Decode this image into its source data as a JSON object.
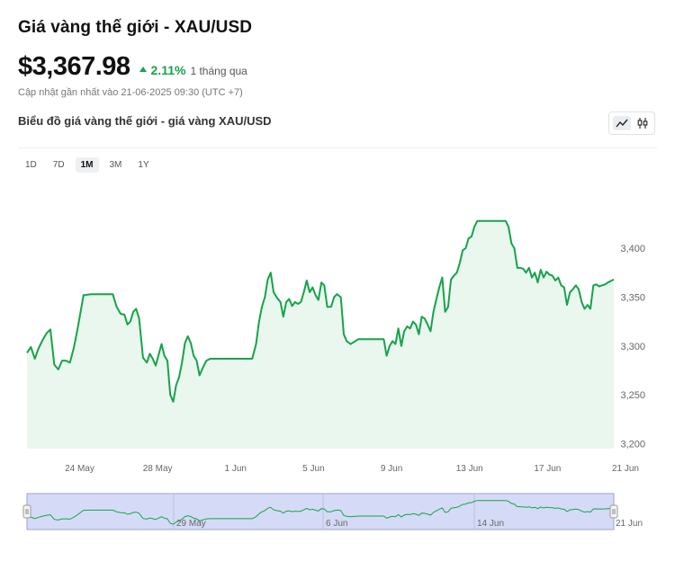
{
  "header": {
    "title": "Giá vàng thế giới - XAU/USD",
    "price": "$3,367.98",
    "change_pct": "2.11%",
    "change_period": "1 tháng qua",
    "updated": "Cập nhật gần nhất vào 21-06-2025 09:30 (UTC +7)"
  },
  "chart_section": {
    "subtitle": "Biểu đồ giá vàng thế giới - giá vàng XAU/USD",
    "view_toggle": {
      "line_icon": "line-chart-icon",
      "candle_icon": "candlestick-icon",
      "selected": "line"
    }
  },
  "ranges": [
    {
      "label": "1D",
      "active": false
    },
    {
      "label": "7D",
      "active": false
    },
    {
      "label": "1M",
      "active": true
    },
    {
      "label": "3M",
      "active": false
    },
    {
      "label": "1Y",
      "active": false
    }
  ],
  "colors": {
    "line": "#16a34a",
    "fill": "#e9f7ee",
    "accent_up": "#16a34a",
    "navigator_fill": "#d5dbf6",
    "navigator_border": "#9aa3cf"
  },
  "chart_data": {
    "type": "area",
    "title": "",
    "xlabel": "",
    "ylabel": "",
    "ylim": [
      3195,
      3470
    ],
    "yticks": [
      "3,200",
      "3,250",
      "3,300",
      "3,350",
      "3,400"
    ],
    "ytick_values": [
      3200,
      3250,
      3300,
      3350,
      3400
    ],
    "xticks": [
      "24 May",
      "28 May",
      "1 Jun",
      "5 Jun",
      "9 Jun",
      "13 Jun",
      "17 Jun",
      "21 Jun"
    ],
    "xtick_values": [
      2,
      6,
      10,
      14,
      18,
      22,
      26,
      30
    ],
    "xlim": [
      -0.7,
      29.4
    ],
    "grid": false,
    "series": [
      {
        "values": [
          [
            -0.7,
            3293
          ],
          [
            -0.5,
            3299
          ],
          [
            -0.3,
            3287
          ],
          [
            -0.1,
            3298
          ],
          [
            0.1,
            3306
          ],
          [
            0.3,
            3313
          ],
          [
            0.5,
            3317
          ],
          [
            0.7,
            3281
          ],
          [
            0.9,
            3276
          ],
          [
            1.1,
            3285
          ],
          [
            1.3,
            3285
          ],
          [
            1.5,
            3283
          ],
          [
            1.7,
            3298
          ],
          [
            1.9,
            3318
          ],
          [
            2.2,
            3352
          ],
          [
            2.6,
            3353
          ],
          [
            3.0,
            3353
          ],
          [
            3.4,
            3353
          ],
          [
            3.7,
            3353
          ],
          [
            3.9,
            3340
          ],
          [
            4.1,
            3333
          ],
          [
            4.3,
            3332
          ],
          [
            4.45,
            3322
          ],
          [
            4.6,
            3325
          ],
          [
            4.75,
            3335
          ],
          [
            4.9,
            3338
          ],
          [
            5.05,
            3328
          ],
          [
            5.25,
            3288
          ],
          [
            5.45,
            3283
          ],
          [
            5.6,
            3292
          ],
          [
            5.75,
            3287
          ],
          [
            5.9,
            3280
          ],
          [
            6.05,
            3291
          ],
          [
            6.2,
            3302
          ],
          [
            6.35,
            3290
          ],
          [
            6.5,
            3285
          ],
          [
            6.65,
            3250
          ],
          [
            6.8,
            3243
          ],
          [
            6.95,
            3260
          ],
          [
            7.1,
            3268
          ],
          [
            7.25,
            3283
          ],
          [
            7.4,
            3303
          ],
          [
            7.55,
            3310
          ],
          [
            7.7,
            3303
          ],
          [
            7.85,
            3290
          ],
          [
            8.0,
            3285
          ],
          [
            8.15,
            3270
          ],
          [
            8.3,
            3277
          ],
          [
            8.5,
            3285
          ],
          [
            8.7,
            3287
          ],
          [
            9.0,
            3287
          ],
          [
            9.4,
            3287
          ],
          [
            9.8,
            3287
          ],
          [
            10.2,
            3287
          ],
          [
            10.6,
            3287
          ],
          [
            10.85,
            3287
          ],
          [
            11.05,
            3302
          ],
          [
            11.2,
            3325
          ],
          [
            11.35,
            3340
          ],
          [
            11.5,
            3350
          ],
          [
            11.65,
            3368
          ],
          [
            11.8,
            3375
          ],
          [
            11.95,
            3355
          ],
          [
            12.1,
            3350
          ],
          [
            12.3,
            3345
          ],
          [
            12.45,
            3330
          ],
          [
            12.6,
            3345
          ],
          [
            12.75,
            3348
          ],
          [
            12.9,
            3341
          ],
          [
            13.05,
            3345
          ],
          [
            13.2,
            3343
          ],
          [
            13.35,
            3345
          ],
          [
            13.5,
            3355
          ],
          [
            13.65,
            3367
          ],
          [
            13.8,
            3355
          ],
          [
            13.95,
            3360
          ],
          [
            14.1,
            3352
          ],
          [
            14.25,
            3347
          ],
          [
            14.4,
            3365
          ],
          [
            14.55,
            3362
          ],
          [
            14.7,
            3340
          ],
          [
            14.9,
            3340
          ],
          [
            15.05,
            3350
          ],
          [
            15.2,
            3353
          ],
          [
            15.4,
            3350
          ],
          [
            15.55,
            3312
          ],
          [
            15.7,
            3305
          ],
          [
            15.9,
            3302
          ],
          [
            16.3,
            3307
          ],
          [
            16.7,
            3307
          ],
          [
            17.1,
            3307
          ],
          [
            17.45,
            3307
          ],
          [
            17.6,
            3307
          ],
          [
            17.75,
            3290
          ],
          [
            17.9,
            3300
          ],
          [
            18.05,
            3305
          ],
          [
            18.2,
            3302
          ],
          [
            18.35,
            3318
          ],
          [
            18.5,
            3300
          ],
          [
            18.65,
            3315
          ],
          [
            18.8,
            3320
          ],
          [
            18.95,
            3318
          ],
          [
            19.1,
            3325
          ],
          [
            19.25,
            3322
          ],
          [
            19.4,
            3312
          ],
          [
            19.55,
            3330
          ],
          [
            19.7,
            3328
          ],
          [
            19.85,
            3322
          ],
          [
            20.0,
            3315
          ],
          [
            20.15,
            3335
          ],
          [
            20.3,
            3348
          ],
          [
            20.45,
            3360
          ],
          [
            20.6,
            3370
          ],
          [
            20.75,
            3335
          ],
          [
            20.9,
            3340
          ],
          [
            21.05,
            3368
          ],
          [
            21.2,
            3372
          ],
          [
            21.35,
            3375
          ],
          [
            21.5,
            3385
          ],
          [
            21.65,
            3398
          ],
          [
            21.8,
            3400
          ],
          [
            21.95,
            3410
          ],
          [
            22.1,
            3412
          ],
          [
            22.25,
            3422
          ],
          [
            22.4,
            3428
          ],
          [
            22.7,
            3428
          ],
          [
            23.1,
            3428
          ],
          [
            23.5,
            3428
          ],
          [
            23.85,
            3428
          ],
          [
            24.0,
            3422
          ],
          [
            24.15,
            3405
          ],
          [
            24.3,
            3400
          ],
          [
            24.45,
            3380
          ],
          [
            24.6,
            3380
          ],
          [
            24.75,
            3379
          ],
          [
            24.9,
            3375
          ],
          [
            25.05,
            3380
          ],
          [
            25.2,
            3370
          ],
          [
            25.35,
            3375
          ],
          [
            25.5,
            3365
          ],
          [
            25.65,
            3378
          ],
          [
            25.8,
            3370
          ],
          [
            25.95,
            3376
          ],
          [
            26.1,
            3373
          ],
          [
            26.25,
            3372
          ],
          [
            26.4,
            3367
          ],
          [
            26.55,
            3370
          ],
          [
            26.7,
            3362
          ],
          [
            26.85,
            3360
          ],
          [
            27.0,
            3342
          ],
          [
            27.15,
            3355
          ],
          [
            27.3,
            3358
          ],
          [
            27.45,
            3362
          ],
          [
            27.6,
            3358
          ],
          [
            27.75,
            3345
          ],
          [
            27.9,
            3338
          ],
          [
            28.05,
            3342
          ],
          [
            28.2,
            3338
          ],
          [
            28.35,
            3362
          ],
          [
            28.5,
            3363
          ],
          [
            28.65,
            3361
          ],
          [
            28.8,
            3362
          ],
          [
            28.95,
            3363
          ],
          [
            29.1,
            3365
          ],
          [
            29.4,
            3368
          ]
        ]
      }
    ]
  },
  "navigator": {
    "labels": [
      "29 May",
      "6 Jun",
      "14 Jun",
      "21 Jun"
    ],
    "label_values": [
      7,
      15,
      23,
      30
    ]
  }
}
